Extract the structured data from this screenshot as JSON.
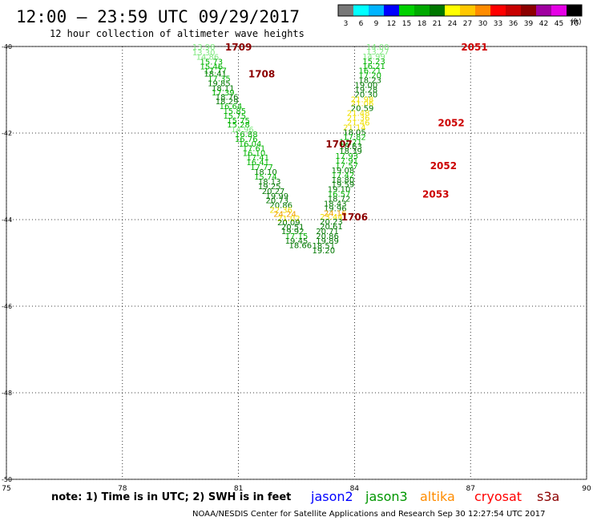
{
  "title": "12:00 – 23:59 UTC 09/29/2017",
  "subtitle": "12 hour collection of altimeter wave heights",
  "note": "note: 1) Time is in UTC; 2) SWH is in feet",
  "credit": "NOAA/NESDIS Center for Satellite Applications and Research   Sep 30 12:27:54 UTC 2017",
  "legend_bins": [
    {
      "label": "3",
      "color": "#787878"
    },
    {
      "label": "6",
      "color": "#00ffff"
    },
    {
      "label": "9",
      "color": "#00b4ff"
    },
    {
      "label": "12",
      "color": "#0000ff"
    },
    {
      "label": "15",
      "color": "#00d200"
    },
    {
      "label": "18",
      "color": "#00aa00"
    },
    {
      "label": "21",
      "color": "#007800"
    },
    {
      "label": "24",
      "color": "#ffff00"
    },
    {
      "label": "27",
      "color": "#ffc800"
    },
    {
      "label": "30",
      "color": "#ff8c00"
    },
    {
      "label": "33",
      "color": "#ff0000"
    },
    {
      "label": "36",
      "color": "#c80000"
    },
    {
      "label": "39",
      "color": "#8c0000"
    },
    {
      "label": "42",
      "color": "#a000a0"
    },
    {
      "label": "45",
      "color": "#e600e6"
    },
    {
      "label": "70",
      "color": "#000000"
    }
  ],
  "legend_unit": "(ft)",
  "satellites": [
    {
      "name": "jason2",
      "color": "#0000ff"
    },
    {
      "name": "jason3",
      "color": "#009600"
    },
    {
      "name": "altika",
      "color": "#ff8c00"
    },
    {
      "name": "cryosat",
      "color": "#ff0000"
    },
    {
      "name": "s3a",
      "color": "#8c0000"
    }
  ],
  "chart_data": {
    "type": "scatter",
    "xlim": [
      75,
      90
    ],
    "ylim": [
      -50,
      -40
    ],
    "xticks": [
      "75",
      "78",
      "81",
      "84",
      "87",
      "90"
    ],
    "yticks": [
      "-40",
      "-42",
      "-44",
      "-46",
      "-48",
      "-50"
    ],
    "grid": true,
    "tracks": [
      {
        "satellite": "s3a",
        "color": "#8c0000",
        "points": [
          [
            80.1,
            -40.0,
            "13.98"
          ],
          [
            80.1,
            -40.13,
            "13.30"
          ],
          [
            80.2,
            -40.23,
            "14.86"
          ],
          [
            80.3,
            -40.34,
            "15.73"
          ],
          [
            80.3,
            -40.45,
            "15.46"
          ],
          [
            80.4,
            -40.55,
            "17.77"
          ],
          [
            80.4,
            -40.62,
            "18.41"
          ],
          [
            80.5,
            -40.73,
            "17.35"
          ],
          [
            80.5,
            -40.84,
            "19.85"
          ],
          [
            80.6,
            -40.95,
            "18.11"
          ],
          [
            80.6,
            -41.06,
            "17.39"
          ],
          [
            80.7,
            -41.16,
            "18.76"
          ],
          [
            80.7,
            -41.26,
            "18.29"
          ],
          [
            80.8,
            -41.37,
            "16.64"
          ],
          [
            80.9,
            -41.48,
            "15.85"
          ],
          [
            80.9,
            -41.59,
            "15.75"
          ],
          [
            81.0,
            -41.7,
            "15.75"
          ],
          [
            81.0,
            -41.8,
            "15.28"
          ],
          [
            81.1,
            -41.91,
            "14.96"
          ],
          [
            81.2,
            -42.02,
            "16.88"
          ],
          [
            81.2,
            -42.13,
            "16.76"
          ],
          [
            81.3,
            -42.24,
            "16.04"
          ],
          [
            81.4,
            -42.34,
            "17.61"
          ],
          [
            81.4,
            -42.45,
            "16.10"
          ],
          [
            81.5,
            -42.56,
            "17.41"
          ],
          [
            81.5,
            -42.67,
            "16.41"
          ],
          [
            81.6,
            -42.78,
            "17.77"
          ],
          [
            81.7,
            -42.89,
            "18.10"
          ],
          [
            81.7,
            -43.0,
            "15.74"
          ],
          [
            81.8,
            -43.11,
            "18.13"
          ],
          [
            81.8,
            -43.22,
            "19.25"
          ],
          [
            81.9,
            -43.33,
            "20.27"
          ],
          [
            82.0,
            -43.44,
            "19.99"
          ],
          [
            82.0,
            -43.55,
            "20.73"
          ],
          [
            82.1,
            -43.66,
            "20.86"
          ],
          [
            82.1,
            -43.77,
            "22.36"
          ],
          [
            82.2,
            -43.86,
            "24.24"
          ],
          [
            82.3,
            -43.96,
            "21.02"
          ],
          [
            82.3,
            -44.06,
            "20.09"
          ],
          [
            82.4,
            -44.16,
            "20.51"
          ],
          [
            82.4,
            -44.26,
            "19.92"
          ],
          [
            82.5,
            -44.37,
            "17.15"
          ],
          [
            82.5,
            -44.48,
            "19.45"
          ],
          [
            82.6,
            -44.58,
            "18.66"
          ]
        ]
      },
      {
        "satellite": "s3a",
        "color": "#8c0000",
        "points": [
          [
            84.6,
            -40.0,
            "14.00"
          ],
          [
            84.6,
            -40.11,
            "13.27"
          ],
          [
            84.5,
            -40.22,
            "14.99"
          ],
          [
            84.5,
            -40.33,
            "15.23"
          ],
          [
            84.5,
            -40.44,
            "16.21"
          ],
          [
            84.4,
            -40.55,
            "16.21"
          ],
          [
            84.4,
            -40.66,
            "17.20"
          ],
          [
            84.4,
            -40.77,
            "18.23"
          ],
          [
            84.3,
            -40.88,
            "19.00"
          ],
          [
            84.3,
            -40.99,
            "19.28"
          ],
          [
            84.3,
            -41.1,
            "20.30"
          ],
          [
            84.2,
            -41.21,
            "21.98"
          ],
          [
            84.2,
            -41.31,
            "21.06"
          ],
          [
            84.2,
            -41.42,
            "20.59"
          ],
          [
            84.1,
            -41.53,
            "21.48"
          ],
          [
            84.1,
            -41.64,
            "21.36"
          ],
          [
            84.1,
            -41.75,
            "21.46"
          ],
          [
            84.0,
            -41.86,
            "21.14"
          ],
          [
            84.0,
            -41.97,
            "18.05"
          ],
          [
            84.0,
            -42.08,
            "17.82"
          ],
          [
            83.9,
            -42.19,
            "17.21"
          ],
          [
            83.9,
            -42.3,
            "18.63"
          ],
          [
            83.9,
            -42.41,
            "18.39"
          ],
          [
            83.8,
            -42.52,
            "17.93"
          ],
          [
            83.8,
            -42.63,
            "17.91"
          ],
          [
            83.8,
            -42.74,
            "17.57"
          ],
          [
            83.7,
            -42.85,
            "19.08"
          ],
          [
            83.7,
            -42.96,
            "17.42"
          ],
          [
            83.7,
            -43.07,
            "18.80"
          ],
          [
            83.7,
            -43.18,
            "19.59"
          ],
          [
            83.6,
            -43.29,
            "19.10"
          ],
          [
            83.6,
            -43.4,
            "16.57"
          ],
          [
            83.6,
            -43.51,
            "18.72"
          ],
          [
            83.5,
            -43.62,
            "18.43"
          ],
          [
            83.5,
            -43.73,
            "19.96"
          ],
          [
            83.5,
            -43.84,
            "24.16"
          ],
          [
            83.4,
            -43.93,
            "23.44"
          ],
          [
            83.4,
            -44.04,
            "20.23"
          ],
          [
            83.4,
            -44.15,
            "20.61"
          ],
          [
            83.3,
            -44.26,
            "20.71"
          ],
          [
            83.3,
            -44.37,
            "20.86"
          ],
          [
            83.3,
            -44.48,
            "19.89"
          ],
          [
            83.2,
            -44.59,
            "18.51"
          ],
          [
            83.2,
            -44.7,
            "19.20"
          ]
        ]
      }
    ],
    "time_labels": [
      {
        "text": "1709",
        "x": 81.0,
        "y": -40.0,
        "color": "#8c0000"
      },
      {
        "text": "1708",
        "x": 81.6,
        "y": -40.62,
        "color": "#8c0000"
      },
      {
        "text": "1707",
        "x": 83.6,
        "y": -42.24,
        "color": "#8c0000"
      },
      {
        "text": "1706",
        "x": 84.0,
        "y": -43.93,
        "color": "#8c0000"
      },
      {
        "text": "2051",
        "x": 87.1,
        "y": -40.0,
        "color": "#cc0000"
      },
      {
        "text": "2052",
        "x": 86.5,
        "y": -41.75,
        "color": "#cc0000"
      },
      {
        "text": "2052",
        "x": 86.3,
        "y": -42.74,
        "color": "#cc0000"
      },
      {
        "text": "2053",
        "x": 86.1,
        "y": -43.4,
        "color": "#cc0000"
      }
    ]
  }
}
